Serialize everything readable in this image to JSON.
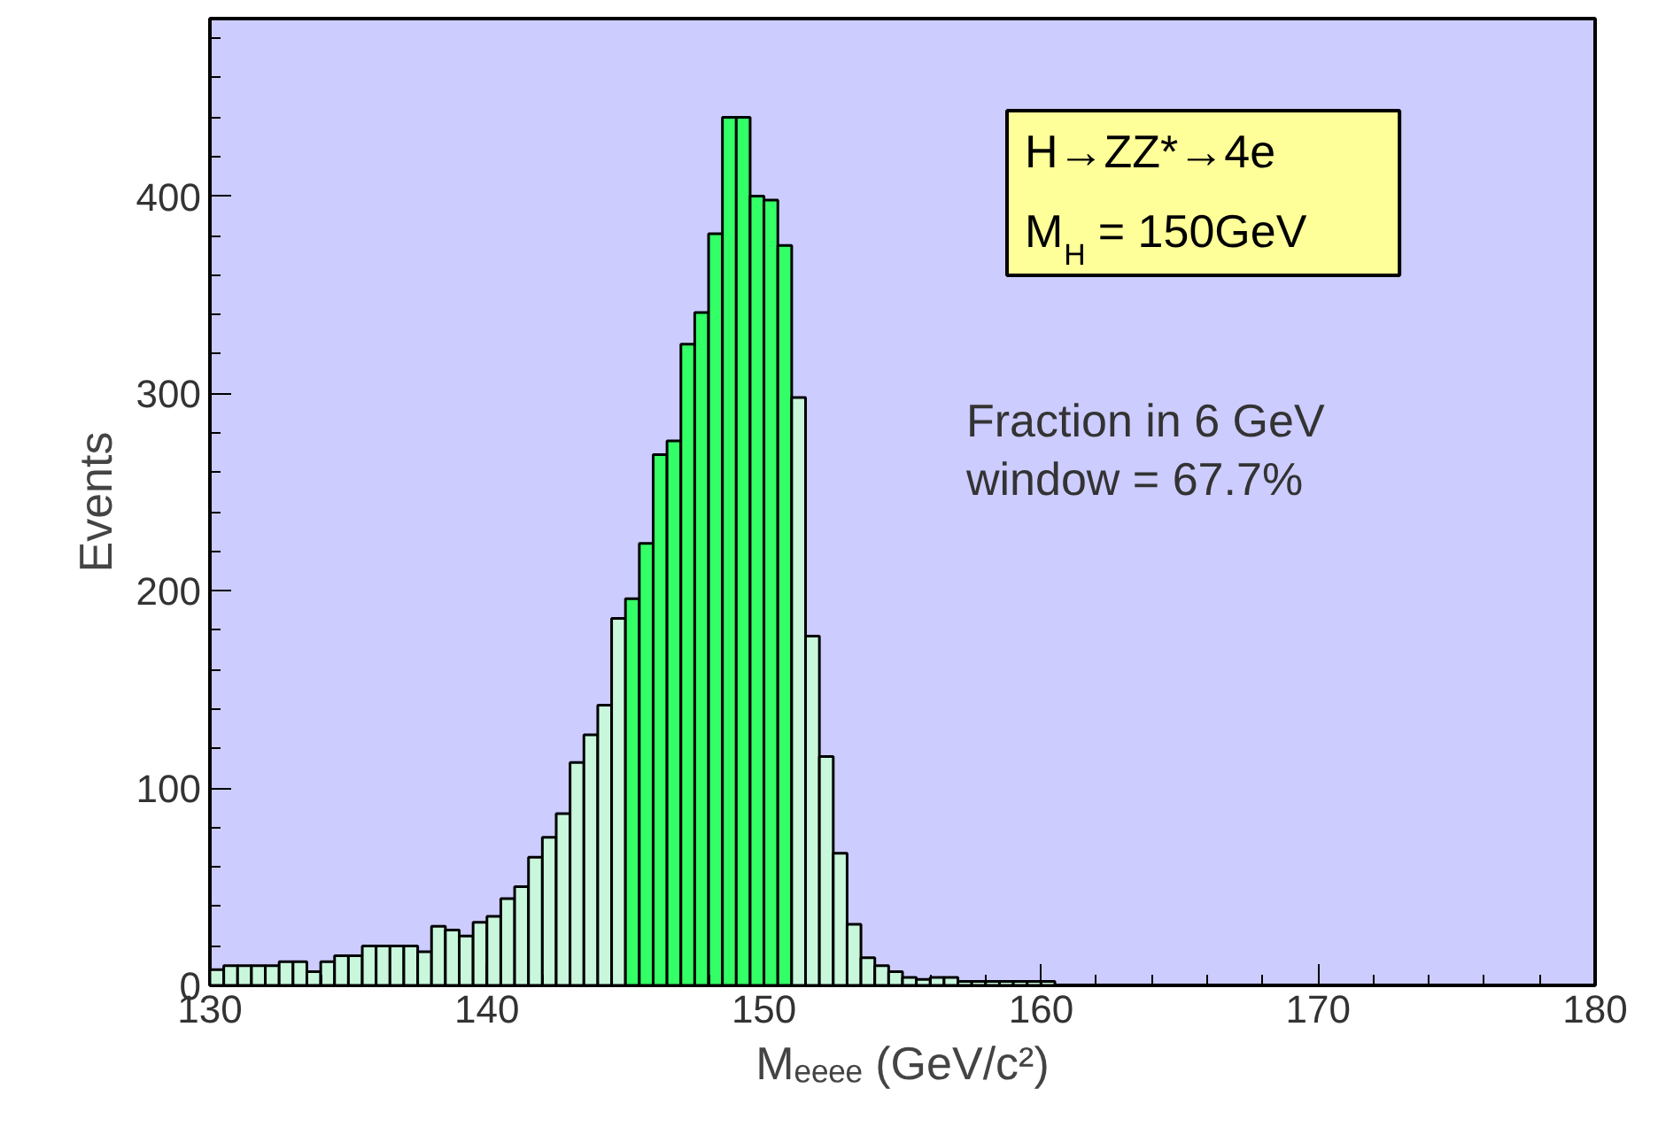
{
  "chart_data": {
    "type": "histogram",
    "xlabel": "Mₑₑₑₑ (GeV/c²)",
    "ylabel": "Events",
    "bins": [
      130,
      130.5,
      131,
      131.5,
      132,
      132.5,
      133,
      133.5,
      134,
      134.5,
      135,
      135.5,
      136,
      136.5,
      137,
      137.5,
      138,
      138.5,
      139,
      139.5,
      140,
      140.5,
      141,
      141.5,
      142,
      142.5,
      143,
      143.5,
      144,
      144.5,
      145,
      145.5,
      146,
      146.5,
      147,
      147.5,
      148,
      148.5,
      149,
      149.5,
      150,
      150.5,
      151,
      151.5,
      152,
      152.5,
      153,
      153.5,
      154,
      154.5,
      155,
      155.5,
      156,
      156.5,
      157,
      157.5,
      158,
      158.5,
      159,
      159.5,
      160,
      160.5,
      161,
      161.5,
      162,
      162.5,
      163,
      163.5,
      164,
      164.5,
      165,
      165.5,
      166,
      166.5,
      167,
      167.5,
      168,
      168.5,
      169,
      169.5,
      170,
      170.5,
      171,
      171.5,
      172,
      172.5,
      173,
      173.5,
      174,
      174.5,
      175,
      175.5,
      176,
      176.5,
      177,
      177.5,
      178,
      178.5,
      179,
      179.5,
      180
    ],
    "values": [
      8,
      10,
      10,
      10,
      10,
      12,
      12,
      7,
      12,
      15,
      15,
      20,
      20,
      20,
      20,
      17,
      30,
      28,
      25,
      32,
      35,
      44,
      50,
      65,
      75,
      87,
      113,
      127,
      142,
      186,
      196,
      224,
      269,
      276,
      325,
      341,
      381,
      440,
      440,
      400,
      398,
      375,
      298,
      177,
      116,
      67,
      31,
      14,
      10,
      7,
      4,
      3,
      4,
      4,
      2,
      2,
      2,
      2,
      2,
      2,
      2,
      0,
      0,
      0,
      0,
      0,
      0,
      0,
      0,
      0,
      0,
      0,
      0,
      0,
      0,
      0,
      0,
      0,
      0,
      0,
      0,
      0,
      0,
      0,
      0,
      0,
      0,
      0,
      0,
      0,
      0,
      0,
      0,
      0,
      0,
      0,
      0,
      0,
      0,
      0
    ],
    "colors": [
      "#c8f7dc",
      "#c8f7dc",
      "#c8f7dc",
      "#c8f7dc",
      "#c8f7dc",
      "#c8f7dc",
      "#c8f7dc",
      "#c8f7dc",
      "#c8f7dc",
      "#c8f7dc",
      "#c8f7dc",
      "#c8f7dc",
      "#c8f7dc",
      "#c8f7dc",
      "#c8f7dc",
      "#c8f7dc",
      "#c8f7dc",
      "#c8f7dc",
      "#c8f7dc",
      "#c8f7dc",
      "#c8f7dc",
      "#c8f7dc",
      "#c8f7dc",
      "#c8f7dc",
      "#c8f7dc",
      "#c8f7dc",
      "#c8f7dc",
      "#c8f7dc",
      "#c8f7dc",
      "#c8f7dc",
      "#33ff66",
      "#33ff66",
      "#33ff66",
      "#33ff66",
      "#33ff66",
      "#33ff66",
      "#33ff66",
      "#33ff66",
      "#33ff66",
      "#33ff66",
      "#33ff66",
      "#33ff66",
      "#c8f7dc",
      "#c8f7dc",
      "#c8f7dc",
      "#c8f7dc",
      "#c8f7dc",
      "#c8f7dc",
      "#c8f7dc",
      "#c8f7dc",
      "#c8f7dc",
      "#c8f7dc",
      "#c8f7dc",
      "#c8f7dc",
      "#c8f7dc",
      "#c8f7dc",
      "#c8f7dc",
      "#c8f7dc",
      "#c8f7dc",
      "#c8f7dc",
      "#c8f7dc",
      "#c8f7dc",
      "#c8f7dc",
      "#c8f7dc",
      "#c8f7dc",
      "#c8f7dc",
      "#c8f7dc",
      "#c8f7dc",
      "#c8f7dc",
      "#c8f7dc",
      "#c8f7dc",
      "#c8f7dc",
      "#c8f7dc",
      "#c8f7dc",
      "#c8f7dc",
      "#c8f7dc",
      "#c8f7dc",
      "#c8f7dc",
      "#c8f7dc",
      "#c8f7dc",
      "#c8f7dc",
      "#c8f7dc",
      "#c8f7dc",
      "#c8f7dc",
      "#c8f7dc",
      "#c8f7dc",
      "#c8f7dc",
      "#c8f7dc",
      "#c8f7dc",
      "#c8f7dc",
      "#c8f7dc",
      "#c8f7dc",
      "#c8f7dc",
      "#c8f7dc",
      "#c8f7dc",
      "#c8f7dc",
      "#c8f7dc",
      "#c8f7dc",
      "#c8f7dc",
      "#c8f7dc"
    ],
    "xlim": [
      130,
      180
    ],
    "ylim": [
      0,
      490
    ],
    "xticks": [
      130,
      140,
      150,
      160,
      170,
      180
    ],
    "yticks": [
      0,
      100,
      200,
      300,
      400
    ],
    "grid": false,
    "annotations": [
      "H→ZZ*→4e",
      "M$_{H}$ = 150GeV",
      "Fraction in 6 GeV\nwindow = 67.7%"
    ]
  }
}
